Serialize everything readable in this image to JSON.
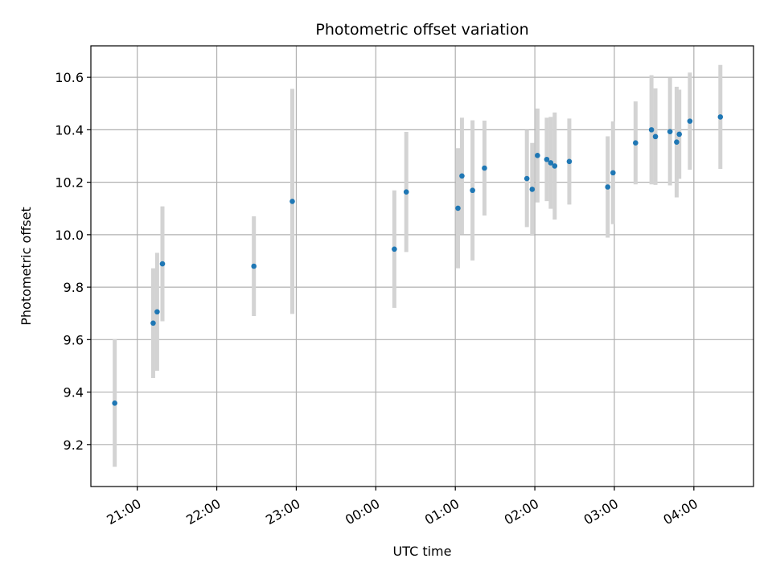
{
  "chart_data": {
    "type": "scatter",
    "title": "Photometric offset variation",
    "xlabel": "UTC time",
    "ylabel": "Photometric offset",
    "x_unit": "hours",
    "xlim": [
      "20:25",
      "04:45"
    ],
    "ylim": [
      9.04,
      10.72
    ],
    "x_ticks": [
      "21:00",
      "22:00",
      "23:00",
      "00:00",
      "01:00",
      "02:00",
      "03:00",
      "04:00"
    ],
    "y_ticks": [
      9.2,
      9.4,
      9.6,
      9.8,
      10.0,
      10.2,
      10.4,
      10.6
    ],
    "y_tick_labels": [
      "9.2",
      "9.4",
      "9.6",
      "9.8",
      "10.0",
      "10.2",
      "10.4",
      "10.6"
    ],
    "grid": true,
    "colors": {
      "point": "#1f77b4",
      "errorbar": "#d3d3d3",
      "grid": "#b0b0b0"
    },
    "points": [
      {
        "x": "20:43",
        "y": 9.358,
        "err": 0.243
      },
      {
        "x": "21:12",
        "y": 9.663,
        "err": 0.209
      },
      {
        "x": "21:15",
        "y": 9.706,
        "err": 0.225
      },
      {
        "x": "21:19",
        "y": 9.889,
        "err": 0.219
      },
      {
        "x": "22:28",
        "y": 9.88,
        "err": 0.19
      },
      {
        "x": "22:57",
        "y": 10.127,
        "err": 0.429
      },
      {
        "x": "00:14",
        "y": 9.945,
        "err": 0.224
      },
      {
        "x": "00:23",
        "y": 10.163,
        "err": 0.229
      },
      {
        "x": "01:02",
        "y": 10.101,
        "err": 0.229
      },
      {
        "x": "01:05",
        "y": 10.224,
        "err": 0.222
      },
      {
        "x": "01:13",
        "y": 10.169,
        "err": 0.267
      },
      {
        "x": "01:22",
        "y": 10.254,
        "err": 0.181
      },
      {
        "x": "01:54",
        "y": 10.214,
        "err": 0.185
      },
      {
        "x": "01:58",
        "y": 10.173,
        "err": 0.177
      },
      {
        "x": "02:02",
        "y": 10.302,
        "err": 0.179
      },
      {
        "x": "02:09",
        "y": 10.287,
        "err": 0.159
      },
      {
        "x": "02:12",
        "y": 10.274,
        "err": 0.175
      },
      {
        "x": "02:15",
        "y": 10.262,
        "err": 0.204
      },
      {
        "x": "02:26",
        "y": 10.279,
        "err": 0.164
      },
      {
        "x": "02:55",
        "y": 10.182,
        "err": 0.193
      },
      {
        "x": "02:59",
        "y": 10.236,
        "err": 0.196
      },
      {
        "x": "03:16",
        "y": 10.35,
        "err": 0.158
      },
      {
        "x": "03:28",
        "y": 10.4,
        "err": 0.208
      },
      {
        "x": "03:31",
        "y": 10.374,
        "err": 0.184
      },
      {
        "x": "03:42",
        "y": 10.393,
        "err": 0.205
      },
      {
        "x": "03:47",
        "y": 10.353,
        "err": 0.211
      },
      {
        "x": "03:49",
        "y": 10.383,
        "err": 0.17
      },
      {
        "x": "03:57",
        "y": 10.433,
        "err": 0.185
      },
      {
        "x": "04:20",
        "y": 10.449,
        "err": 0.198
      }
    ]
  }
}
